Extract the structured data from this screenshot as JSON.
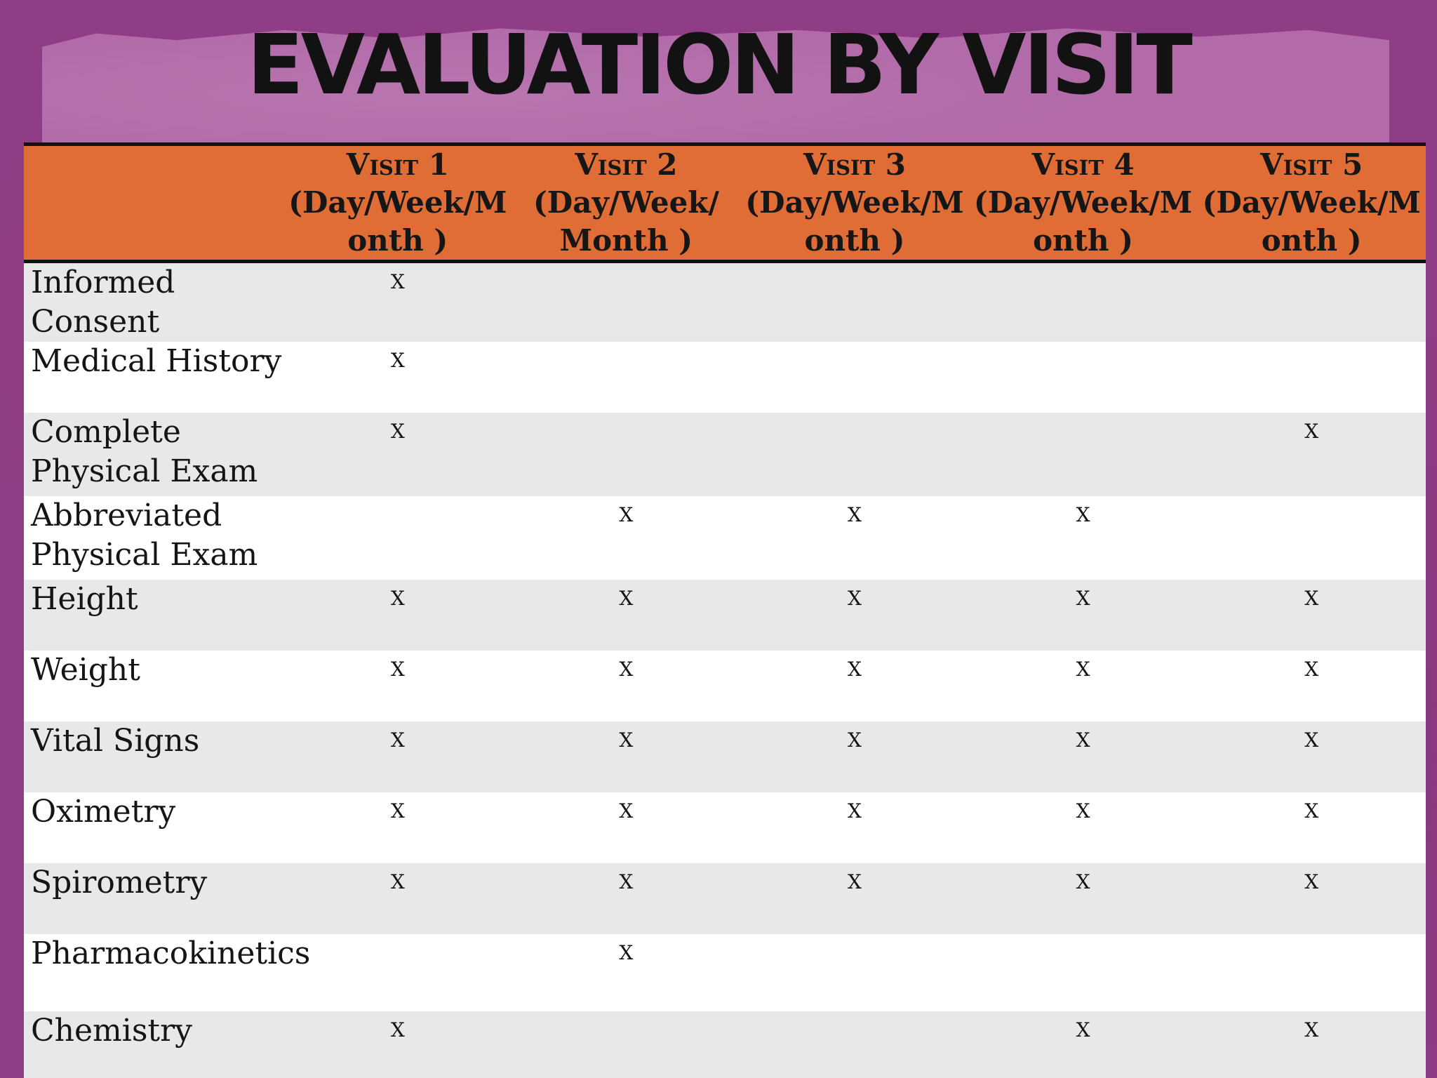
{
  "title": "EVALUATION  BY VISIT",
  "columns": [
    {
      "title": "Visit 1",
      "sub": "(Day/Week/M onth )"
    },
    {
      "title": "Visit 2",
      "sub": "(Day/Week/ Month )"
    },
    {
      "title": "Visit 3",
      "sub": "(Day/Week/M onth )"
    },
    {
      "title": "Visit 4",
      "sub": "(Day/Week/M onth )"
    },
    {
      "title": "Visit 5",
      "sub": "(Day/Week/M onth )"
    }
  ],
  "rows": [
    {
      "label": "Informed Consent",
      "marks": [
        "X",
        "",
        "",
        "",
        ""
      ]
    },
    {
      "label": "Medical History",
      "marks": [
        "X",
        "",
        "",
        "",
        ""
      ]
    },
    {
      "label": "Complete Physical Exam",
      "marks": [
        "X",
        "",
        "",
        "",
        "X"
      ]
    },
    {
      "label": "Abbreviated Physical Exam",
      "marks": [
        "",
        "X",
        "X",
        "X",
        ""
      ]
    },
    {
      "label": "Height",
      "marks": [
        "X",
        "X",
        "X",
        "X",
        "X"
      ]
    },
    {
      "label": "Weight",
      "marks": [
        "X",
        "X",
        "X",
        "X",
        "X"
      ]
    },
    {
      "label": "Vital Signs",
      "marks": [
        "X",
        "X",
        "X",
        "X",
        "X"
      ]
    },
    {
      "label": "Oximetry",
      "marks": [
        "X",
        "X",
        "X",
        "X",
        "X"
      ]
    },
    {
      "label": "Spirometry",
      "marks": [
        "X",
        "X",
        "X",
        "X",
        "X"
      ]
    },
    {
      "label": "Pharmacokinetics",
      "marks": [
        "",
        "X",
        "",
        "",
        ""
      ]
    },
    {
      "label": "Chemistry",
      "marks": [
        "X",
        "",
        "",
        "X",
        "X"
      ]
    }
  ],
  "colors": {
    "background": "#8e3d86",
    "header_band": "#b26aa9",
    "table_header": "#e06d35",
    "row_odd": "#e8e7ea",
    "row_even": "#ffffff"
  }
}
